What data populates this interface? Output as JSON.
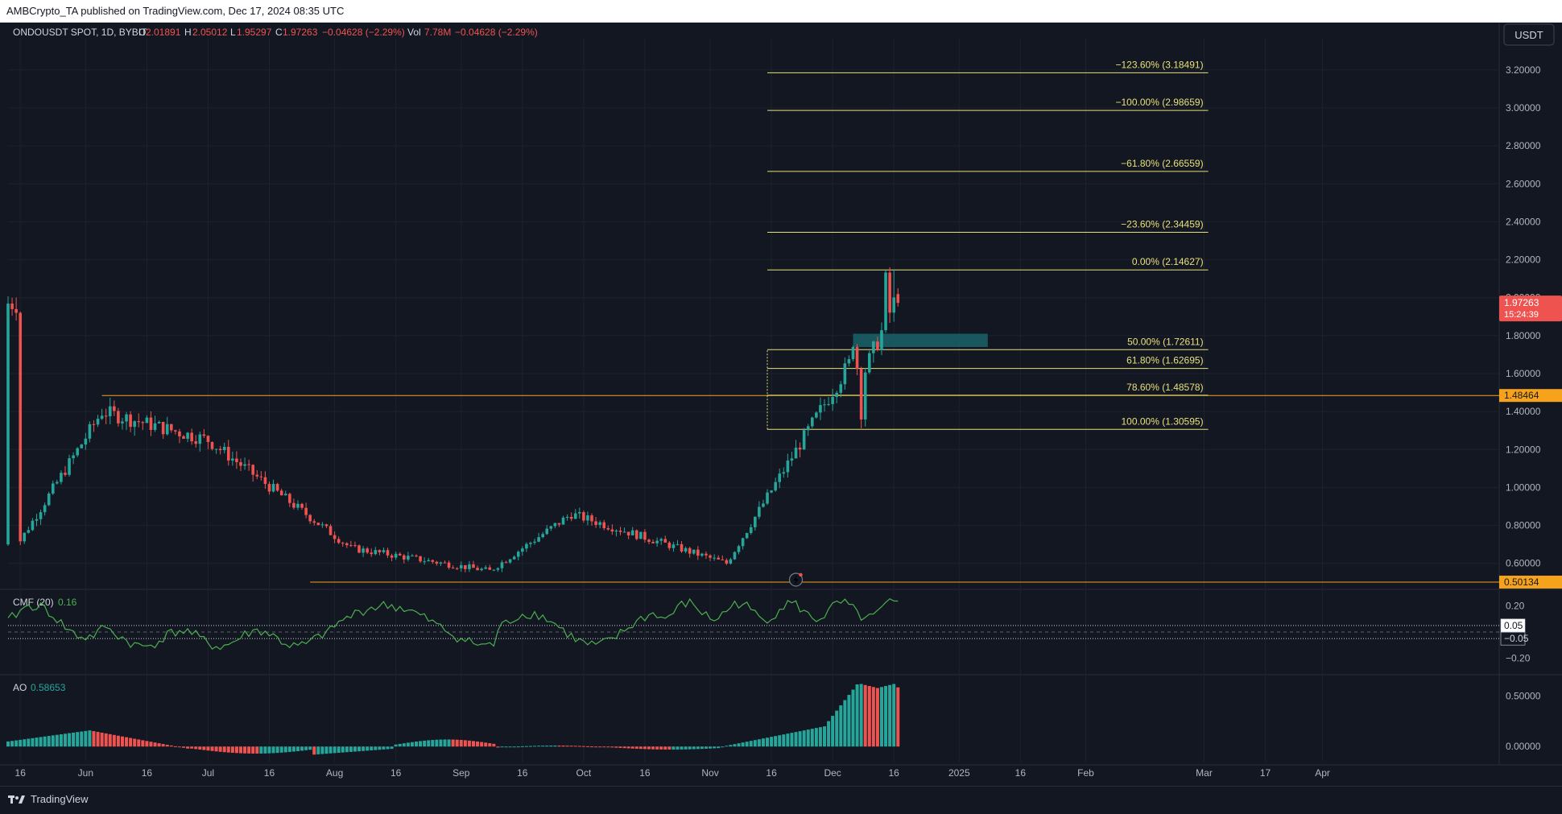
{
  "header": {
    "published": "AMBCrypto_TA published on TradingView.com, Dec 17, 2024 08:35 UTC"
  },
  "legend": {
    "symbol": "ONDOUSDT SPOT, 1D, BYBIT",
    "o_label": "O",
    "o": "2.01891",
    "h_label": "H",
    "h": "2.05012",
    "l_label": "L",
    "l": "1.95297",
    "c_label": "C",
    "c": "1.97263",
    "change": "−0.04628 (−2.29%)",
    "vol_label": "Vol",
    "vol": "7.78M",
    "vol_change": "−0.04628 (−2.29%)"
  },
  "currency_button": "USDT",
  "footer": {
    "brand": "TradingView"
  },
  "colors": {
    "background": "#131722",
    "up": "#26a69a",
    "down": "#ef5350",
    "fib": "#e8e07a",
    "level": "#f7a21b",
    "cmf": "#4caf50",
    "zone": "#1b5e66"
  },
  "chart_data": [
    {
      "type": "candlestick",
      "id": "price",
      "ylim": [
        0.48,
        3.28
      ],
      "yticks": [
        "3.20000",
        "3.00000",
        "2.80000",
        "2.60000",
        "2.40000",
        "2.20000",
        "2.00000",
        "1.80000",
        "1.60000",
        "1.40000",
        "1.20000",
        "1.00000",
        "0.80000",
        "0.60000"
      ],
      "xticks": [
        "16",
        "Jun",
        "16",
        "Jul",
        "16",
        "Aug",
        "16",
        "Sep",
        "16",
        "Oct",
        "16",
        "Nov",
        "16",
        "Dec",
        "16",
        "2025",
        "16",
        "Feb",
        "Mar",
        "17",
        "Apr"
      ],
      "approx_series": {
        "note_dates": [
          "May 16",
          "Jun 5",
          "Jul 1",
          "Aug 5",
          "Sep 8",
          "Sep 28",
          "Nov 5",
          "Dec 5",
          "Dec 9",
          "Dec 16"
        ],
        "close": [
          0.72,
          1.4,
          1.25,
          0.68,
          0.56,
          0.86,
          0.6,
          1.65,
          1.62,
          1.97
        ]
      },
      "last_price": {
        "value": "1.97263",
        "countdown": "15:24:39"
      },
      "levels": [
        {
          "value": 1.48464,
          "label": "1.48464"
        },
        {
          "value": 0.50134,
          "label": "0.50134"
        }
      ],
      "demand_zone": [
        1.74,
        1.81
      ],
      "fib_levels": [
        {
          "value": 3.18491,
          "label": "−123.60% (3.18491)"
        },
        {
          "value": 2.98659,
          "label": "−100.00% (2.98659)"
        },
        {
          "value": 2.66559,
          "label": "−61.80% (2.66559)"
        },
        {
          "value": 2.34459,
          "label": "−23.60% (2.34459)"
        },
        {
          "value": 2.14627,
          "label": "0.00% (2.14627)"
        },
        {
          "value": 1.72611,
          "label": "50.00% (1.72611)"
        },
        {
          "value": 1.62695,
          "label": "61.80% (1.62695)"
        },
        {
          "value": 1.48578,
          "label": "78.60% (1.48578)"
        },
        {
          "value": 1.30595,
          "label": "100.00% (1.30595)"
        }
      ]
    },
    {
      "type": "line",
      "id": "cmf",
      "title": "CMF (20)",
      "value": "0.16",
      "ylim": [
        -0.3,
        0.3
      ],
      "yticks": [
        "0.20",
        "−0.20"
      ],
      "bands": [
        {
          "value": 0.05,
          "label": "0.05"
        },
        {
          "value": -0.05,
          "label": "−0.05"
        }
      ]
    },
    {
      "type": "bar",
      "id": "ao",
      "title": "AO",
      "value": "0.58653",
      "ylim": [
        -0.15,
        0.68
      ],
      "yticks": [
        "0.50000",
        "0.00000"
      ]
    }
  ]
}
